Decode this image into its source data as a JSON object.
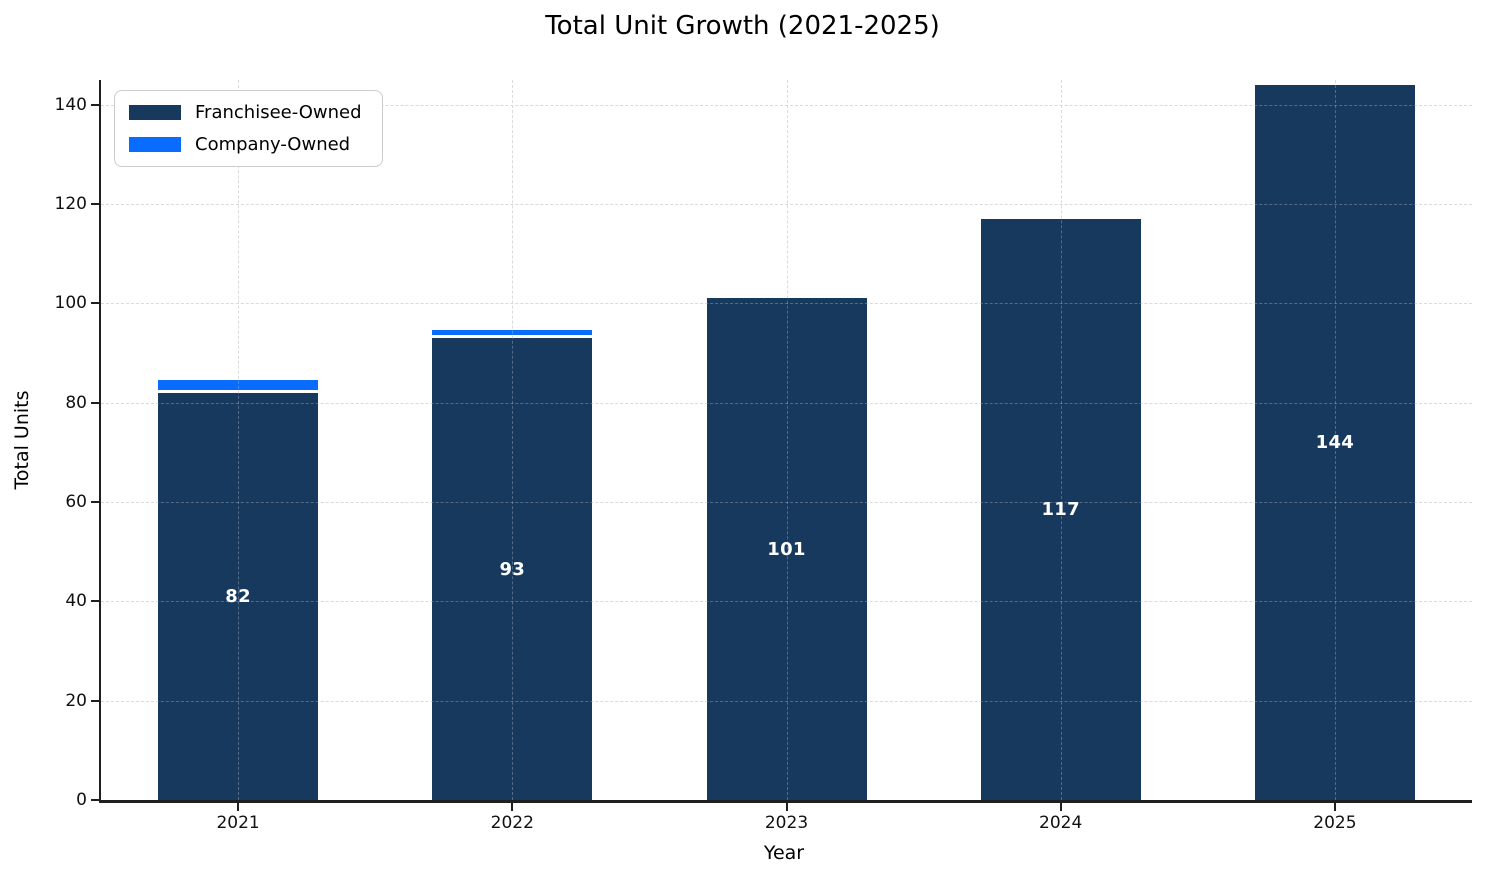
{
  "chart_data": {
    "type": "bar",
    "stacked": true,
    "title": "Total Unit Growth (2021-2025)",
    "xlabel": "Year",
    "ylabel": "Total Units",
    "categories": [
      "2021",
      "2022",
      "2023",
      "2024",
      "2025"
    ],
    "series": [
      {
        "name": "Franchisee-Owned",
        "color": "#17395E",
        "values": [
          82,
          93,
          101,
          117,
          144
        ]
      },
      {
        "name": "Company-Owned",
        "color": "#0A6CFF",
        "values": [
          2,
          1,
          0,
          0,
          0
        ]
      }
    ],
    "bar_labels": [
      "82",
      "93",
      "101",
      "117",
      "144"
    ],
    "bar_label_color": "#FFFFFF",
    "yticks": [
      0,
      20,
      40,
      60,
      80,
      100,
      120,
      140
    ],
    "ylim": [
      0,
      145
    ],
    "grid": {
      "visible": true,
      "style": "dashed",
      "color": "#D9D9D9",
      "drawn_over_bars": true
    },
    "legend": {
      "position": "upper-left",
      "entries": [
        "Franchisee-Owned",
        "Company-Owned"
      ]
    },
    "background": "#FFFFFF",
    "spine_color": "#1F1F1F"
  }
}
